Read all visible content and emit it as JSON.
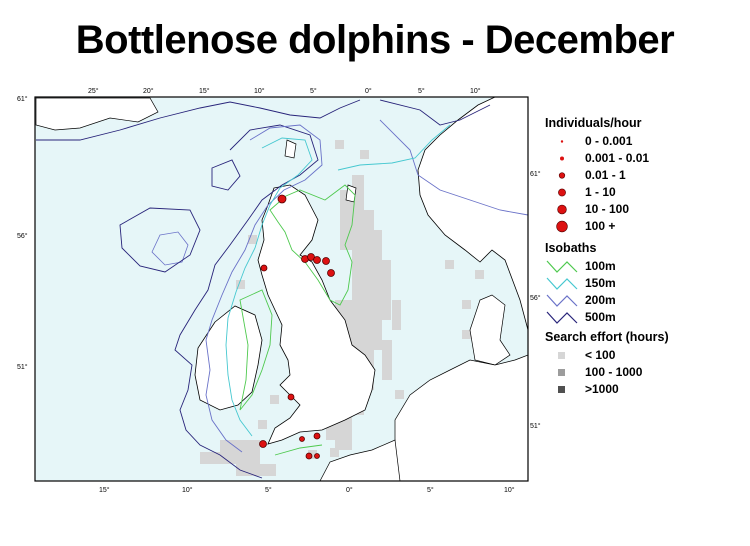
{
  "title": "Bottlenose dolphins - December",
  "map": {
    "top_ticks": [
      "25°",
      "20°",
      "15°",
      "10°",
      "5°",
      "0°",
      "5°",
      "10°"
    ],
    "bottom_ticks": [
      "15°",
      "10°",
      "5°",
      "0°",
      "5°",
      "10°"
    ],
    "left_ticks": [
      "61°",
      "56°",
      "51°"
    ],
    "right_ticks": [
      "61°",
      "56°",
      "51°"
    ]
  },
  "legend": {
    "individuals": {
      "heading": "Individuals/hour",
      "items": [
        "0 - 0.001",
        "0.001  - 0.01",
        "0.01 - 1",
        "1 - 10",
        "10 - 100",
        "100 +"
      ]
    },
    "isobaths": {
      "heading": "Isobaths",
      "items": [
        {
          "label": "100m",
          "color": "#4ec94e"
        },
        {
          "label": "150m",
          "color": "#46c8d0"
        },
        {
          "label": "200m",
          "color": "#6a72c8"
        },
        {
          "label": "500m",
          "color": "#28247a"
        }
      ]
    },
    "effort": {
      "heading": "Search effort (hours)",
      "items": [
        {
          "label": "< 100",
          "color": "#d6d6d6"
        },
        {
          "label": "100 - 1000",
          "color": "#9c9c9c"
        },
        {
          "label": ">1000",
          "color": "#505050"
        }
      ]
    }
  },
  "colors": {
    "sea": "#e6f6f8",
    "land": "#ffffff",
    "dot": "#dd1111",
    "effort_light": "#d6d6d6"
  }
}
